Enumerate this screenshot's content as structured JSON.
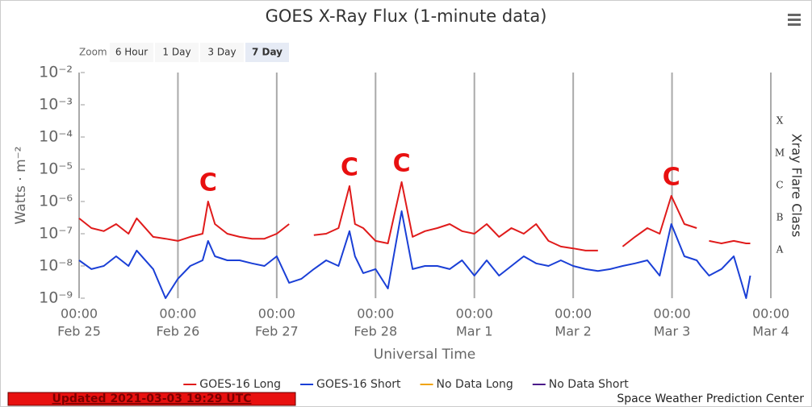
{
  "chart_data": {
    "type": "line",
    "title": "GOES X-Ray Flux (1-minute data)",
    "x_label": "Universal Time",
    "y_label": "Watts · m⁻²",
    "y2_label": "Xray Flare Class",
    "yscale": "log",
    "ylim": [
      1e-09,
      0.01
    ],
    "yticks": [
      {
        "value": 0.01,
        "label": "10⁻²"
      },
      {
        "value": 0.001,
        "label": "10⁻³"
      },
      {
        "value": 0.0001,
        "label": "10⁻⁴"
      },
      {
        "value": 1e-05,
        "label": "10⁻⁵"
      },
      {
        "value": 1e-06,
        "label": "10⁻⁶"
      },
      {
        "value": 1e-07,
        "label": "10⁻⁷"
      },
      {
        "value": 1e-08,
        "label": "10⁻⁸"
      },
      {
        "value": 1e-09,
        "label": "10⁻⁹"
      }
    ],
    "y2ticks": [
      {
        "value": 0.0001,
        "label": "X"
      },
      {
        "value": 1e-05,
        "label": "M"
      },
      {
        "value": 1e-06,
        "label": "C"
      },
      {
        "value": 1e-07,
        "label": "B"
      },
      {
        "value": 1e-08,
        "label": "A"
      }
    ],
    "xlim": [
      "Feb 25 00:00",
      "Mar 4 00:00"
    ],
    "xticks": [
      {
        "value": "Feb 25 00:00",
        "label": [
          "00:00",
          "Feb 25"
        ]
      },
      {
        "value": "Feb 26 00:00",
        "label": [
          "00:00",
          "Feb 26"
        ]
      },
      {
        "value": "Feb 27 00:00",
        "label": [
          "00:00",
          "Feb 27"
        ]
      },
      {
        "value": "Feb 28 00:00",
        "label": [
          "00:00",
          "Feb 28"
        ]
      },
      {
        "value": "Mar 1 00:00",
        "label": [
          "00:00",
          "Mar 1"
        ]
      },
      {
        "value": "Mar 2 00:00",
        "label": [
          "00:00",
          "Mar 2"
        ]
      },
      {
        "value": "Mar 3 00:00",
        "label": [
          "00:00",
          "Mar 3"
        ]
      },
      {
        "value": "Mar 4 00:00",
        "label": [
          "00:00",
          "Mar 4"
        ]
      }
    ],
    "grid": true,
    "x": [
      "Feb 25 00:00",
      "Feb 25 03:00",
      "Feb 25 06:00",
      "Feb 25 09:00",
      "Feb 25 12:00",
      "Feb 25 14:00",
      "Feb 25 18:00",
      "Feb 25 21:00",
      "Feb 26 00:00",
      "Feb 26 03:00",
      "Feb 26 06:00",
      "Feb 26 07:20",
      "Feb 26 09:00",
      "Feb 26 12:00",
      "Feb 26 15:00",
      "Feb 26 18:00",
      "Feb 26 21:00",
      "Feb 27 00:00",
      "Feb 27 03:00",
      "Feb 27 06:00",
      "Feb 27 09:00",
      "Feb 27 12:00",
      "Feb 27 15:00",
      "Feb 27 17:40",
      "Feb 27 19:00",
      "Feb 27 21:00",
      "Feb 28 00:00",
      "Feb 28 03:00",
      "Feb 28 06:20",
      "Feb 28 09:00",
      "Feb 28 12:00",
      "Feb 28 15:00",
      "Feb 28 18:00",
      "Feb 28 21:00",
      "Mar 1 00:00",
      "Mar 1 03:00",
      "Mar 1 06:00",
      "Mar 1 09:00",
      "Mar 1 12:00",
      "Mar 1 15:00",
      "Mar 1 18:00",
      "Mar 1 21:00",
      "Mar 2 00:00",
      "Mar 2 03:00",
      "Mar 2 06:00",
      "Mar 2 09:00",
      "Mar 2 12:00",
      "Mar 2 15:00",
      "Mar 2 18:00",
      "Mar 2 21:00",
      "Mar 2 23:50",
      "Mar 3 03:00",
      "Mar 3 06:00",
      "Mar 3 07:00",
      "Mar 3 09:00",
      "Mar 3 12:00",
      "Mar 3 15:00",
      "Mar 3 18:00",
      "Mar 3 19:00"
    ],
    "series": [
      {
        "name": "GOES-16 Long",
        "color": "#e01b1b",
        "values": [
          3e-07,
          1.5e-07,
          1.2e-07,
          2e-07,
          1e-07,
          3e-07,
          8e-08,
          7e-08,
          6e-08,
          8e-08,
          1e-07,
          1e-06,
          2e-07,
          1e-07,
          8e-08,
          7e-08,
          7e-08,
          1e-07,
          2e-07,
          null,
          9e-08,
          1e-07,
          1.5e-07,
          3e-06,
          2e-07,
          1.5e-07,
          6e-08,
          5e-08,
          4e-06,
          8e-08,
          1.2e-07,
          1.5e-07,
          2e-07,
          1.2e-07,
          1e-07,
          2e-07,
          8e-08,
          1.5e-07,
          1e-07,
          2e-07,
          6e-08,
          4e-08,
          3.5e-08,
          3e-08,
          3e-08,
          null,
          4e-08,
          8e-08,
          1.5e-07,
          1e-07,
          1.5e-06,
          2e-07,
          1.5e-07,
          null,
          6e-08,
          5e-08,
          6e-08,
          5e-08,
          5e-08
        ]
      },
      {
        "name": "GOES-16 Short",
        "color": "#1a3fd6",
        "values": [
          1.5e-08,
          8e-09,
          1e-08,
          2e-08,
          1e-08,
          3e-08,
          8e-09,
          1e-09,
          4e-09,
          1e-08,
          1.5e-08,
          6e-08,
          2e-08,
          1.5e-08,
          1.5e-08,
          1.2e-08,
          1e-08,
          2e-08,
          3e-09,
          4e-09,
          8e-09,
          1.5e-08,
          1e-08,
          1.2e-07,
          2e-08,
          6e-09,
          8e-09,
          2e-09,
          5e-07,
          8e-09,
          1e-08,
          1e-08,
          8e-09,
          1.5e-08,
          5e-09,
          1.5e-08,
          5e-09,
          1e-08,
          2e-08,
          1.2e-08,
          1e-08,
          1.5e-08,
          1e-08,
          8e-09,
          7e-09,
          8e-09,
          1e-08,
          1.2e-08,
          1.5e-08,
          5e-09,
          2e-07,
          2e-08,
          1.5e-08,
          1e-08,
          5e-09,
          8e-09,
          2e-08,
          1e-09,
          5e-09
        ]
      },
      {
        "name": "No Data Long",
        "color": "#f0a30a"
      },
      {
        "name": "No Data Short",
        "color": "#4b1a8a"
      }
    ],
    "annotations": [
      {
        "text": "C",
        "x": "Feb 26 07:20"
      },
      {
        "text": "C",
        "x": "Feb 27 17:40"
      },
      {
        "text": "C",
        "x": "Feb 28 06:20"
      },
      {
        "text": "C",
        "x": "Mar 2 23:50"
      }
    ]
  },
  "zoom": {
    "label": "Zoom",
    "buttons": [
      "6 Hour",
      "1 Day",
      "3 Day",
      "7 Day"
    ],
    "selected": 3
  },
  "footer": {
    "updated": "Updated 2021-03-03 19:29 UTC",
    "credit": "Space Weather Prediction Center"
  }
}
